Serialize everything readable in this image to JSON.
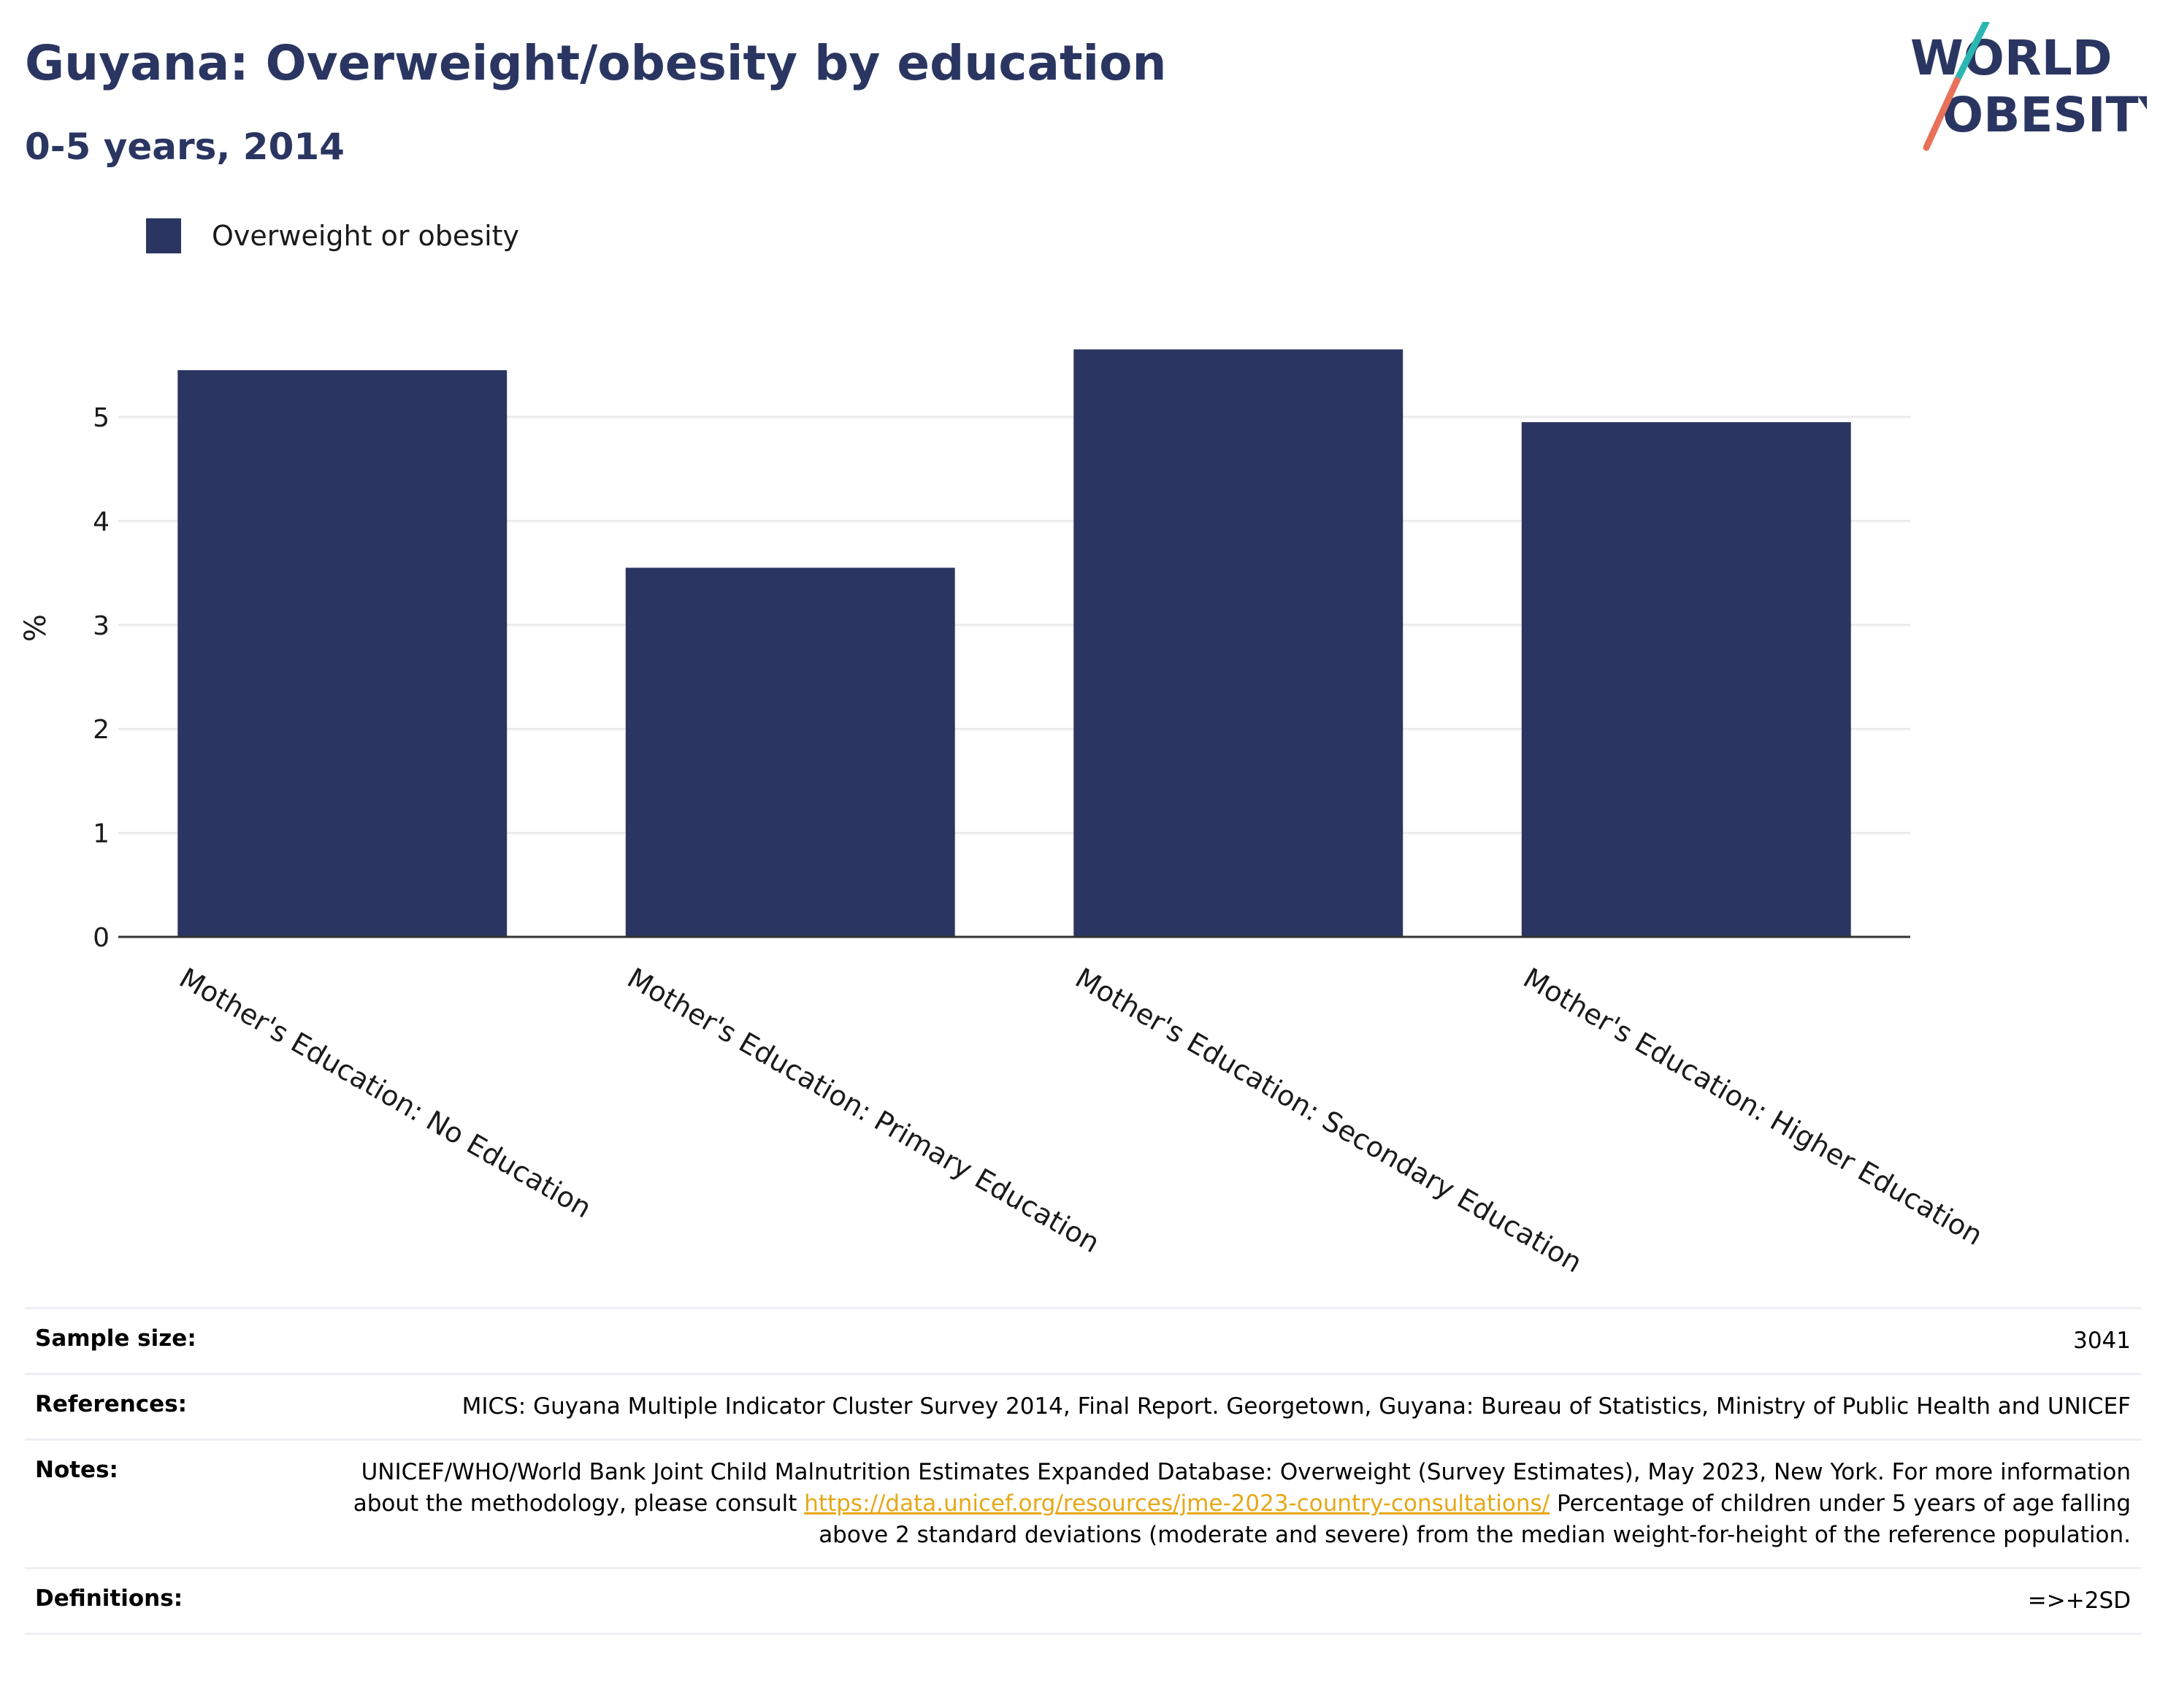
{
  "header": {
    "title": "Guyana: Overweight/obesity by education",
    "subtitle": "0-5 years, 2014"
  },
  "logo": {
    "line1": "WORLD",
    "line2": "OBESITY",
    "slash_color_top": "#2ab7b1",
    "slash_color_bottom": "#e8715a"
  },
  "legend": {
    "label": "Overweight or obesity",
    "color": "#2a3661"
  },
  "chart_data": {
    "type": "bar",
    "categories": [
      "Mother's Education: No Education",
      "Mother's Education: Primary Education",
      "Mother's Education: Secondary Education",
      "Mother's Education: Higher Education"
    ],
    "series": [
      {
        "name": "Overweight or obesity",
        "values": [
          5.45,
          3.55,
          5.65,
          4.95
        ],
        "color": "#2a3661"
      }
    ],
    "ylabel": "%",
    "ylim": [
      0,
      5.9
    ],
    "yticks": [
      0,
      1,
      2,
      3,
      4,
      5
    ],
    "grid": true,
    "legend_position": "top-left"
  },
  "info": {
    "sample_size_label": "Sample size:",
    "sample_size_value": "3041",
    "references_label": "References:",
    "references_value": "MICS: Guyana Multiple Indicator Cluster Survey 2014, Final Report. Georgetown, Guyana: Bureau of Statistics, Ministry of Public Health and UNICEF",
    "notes_label": "Notes:",
    "notes_text_1": "UNICEF/WHO/World Bank Joint Child Malnutrition Estimates Expanded Database: Overweight (Survey Estimates), May 2023, New York. For more information about the methodology, please consult ",
    "notes_link": "https://data.unicef.org/resources/jme-2023-country-consultations/",
    "notes_text_2": " Percentage of children under 5 years of age falling above 2 standard deviations (moderate and severe) from the median weight-for-height of the reference population.",
    "definitions_label": "Definitions:",
    "definitions_value": "=>+2SD"
  }
}
